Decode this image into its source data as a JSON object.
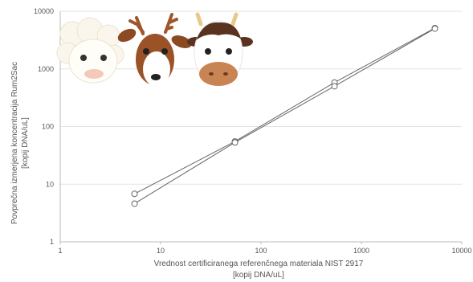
{
  "chart_data": {
    "type": "scatter",
    "title": "",
    "xlabel": [
      "Vrednost certificiranega referenčnega materiala NIST 2917",
      "[kopij DNA/uL]"
    ],
    "ylabel": [
      "Povprečna izmerjena koncentracija Rum2Sac",
      "[kopij DNA/uL]"
    ],
    "x_scale": "log",
    "y_scale": "log",
    "xlim": [
      1,
      10000
    ],
    "ylim": [
      1,
      10000
    ],
    "x_ticks": [
      "1",
      "10",
      "100",
      "1000",
      "10000"
    ],
    "y_ticks": [
      "1",
      "10",
      "100",
      "1000",
      "10000"
    ],
    "grid": "horizontal",
    "series": [
      {
        "x": [
          5.5,
          55,
          540,
          5400
        ],
        "y": [
          6.8,
          55,
          580,
          5100
        ]
      },
      {
        "x": [
          5.5,
          55,
          540,
          5400
        ],
        "y": [
          4.6,
          53,
          500,
          5000
        ]
      }
    ],
    "colors": {
      "line": "#666666",
      "grid": "#e3e3e3",
      "axis": "#bbbbbb",
      "text": "#555555"
    },
    "decoration": {
      "icons": [
        "sheep-icon",
        "deer-icon",
        "cow-icon"
      ]
    }
  }
}
